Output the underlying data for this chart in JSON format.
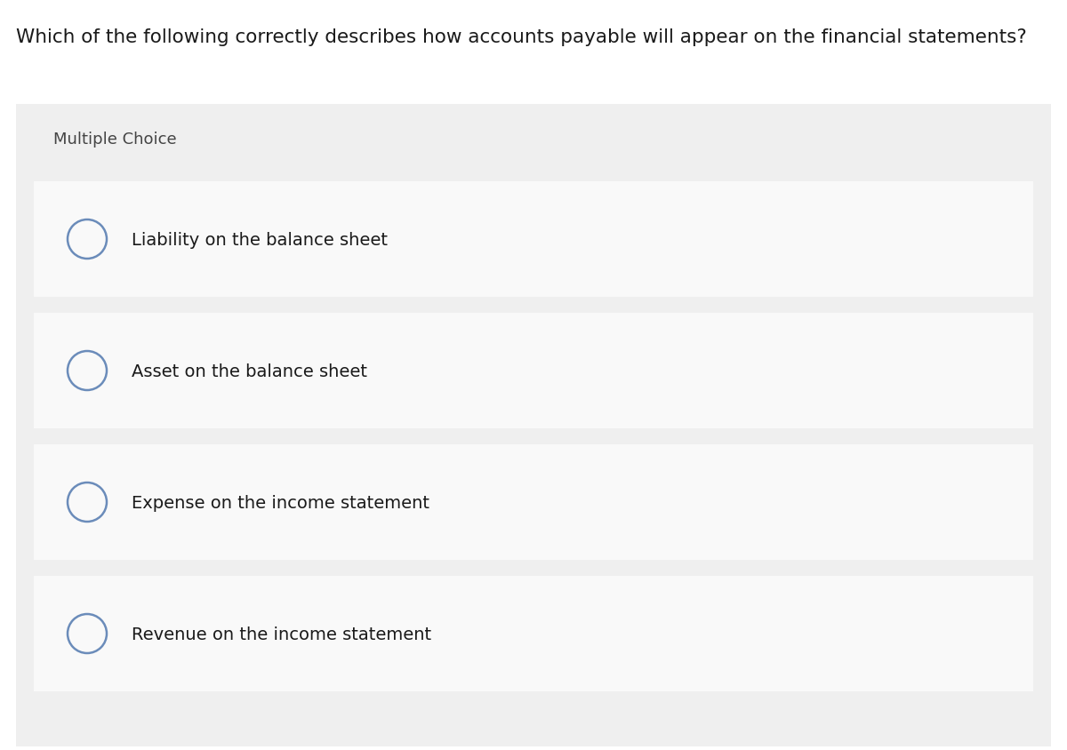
{
  "question": "Which of the following correctly describes how accounts payable will appear on the financial statements?",
  "section_label": "Multiple Choice",
  "choices": [
    "Liability on the balance sheet",
    "Asset on the balance sheet",
    "Expense on the income statement",
    "Revenue on the income statement"
  ],
  "bg_color": "#ffffff",
  "outer_bg_color": "#efefef",
  "choice_bg_color": "#f9f9f9",
  "question_fontsize": 15.5,
  "section_fontsize": 13,
  "choice_fontsize": 14,
  "circle_color": "#6b8cba",
  "text_color": "#1a1a1a",
  "section_text_color": "#444444",
  "fig_width": 12.0,
  "fig_height": 8.45,
  "dpi": 100
}
